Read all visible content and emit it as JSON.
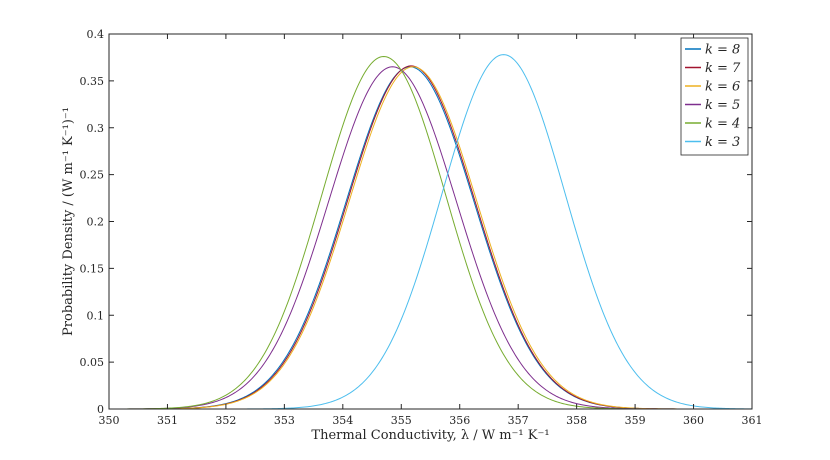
{
  "chart_data": {
    "type": "line",
    "xlabel": "Thermal Conductivity, λ / W m⁻¹ K⁻¹",
    "ylabel": "Probability Density / (W m⁻¹ K⁻¹)⁻¹",
    "xlim": [
      350,
      361
    ],
    "ylim": [
      0,
      0.4
    ],
    "xticks": [
      350,
      351,
      352,
      353,
      354,
      355,
      356,
      357,
      358,
      359,
      360,
      361
    ],
    "yticks": [
      0,
      0.05,
      0.1,
      0.15,
      0.2,
      0.25,
      0.3,
      0.35,
      0.4
    ],
    "grid": false,
    "legend_position": "top-right",
    "series": [
      {
        "name": "k = 8",
        "color": "#0072BD",
        "mean": 355.15,
        "peak": 0.365,
        "x": [
          351,
          352,
          353,
          354,
          354.5,
          355,
          355.15,
          355.5,
          356,
          357,
          358,
          359
        ],
        "y": [
          0.0022,
          0.0214,
          0.1077,
          0.2778,
          0.3401,
          0.3625,
          0.365,
          0.3517,
          0.2853,
          0.1115,
          0.0187,
          0.0014
        ]
      },
      {
        "name": "k = 7",
        "color": "#A2142F",
        "mean": 355.17,
        "peak": 0.366,
        "x": [
          351,
          352,
          353,
          354,
          354.5,
          355,
          355.17,
          355.5,
          356,
          357,
          358,
          359
        ],
        "y": [
          0.0021,
          0.0207,
          0.1054,
          0.2754,
          0.3393,
          0.3636,
          0.366,
          0.3541,
          0.2889,
          0.114,
          0.0194,
          0.0015
        ]
      },
      {
        "name": "k = 6",
        "color": "#EDB120",
        "mean": 355.2,
        "peak": 0.365,
        "x": [
          351,
          352,
          353,
          354,
          354.5,
          355,
          355.2,
          355.5,
          356,
          357,
          358,
          359
        ],
        "y": [
          0.002,
          0.0197,
          0.1018,
          0.2706,
          0.3364,
          0.3622,
          0.365,
          0.3556,
          0.2923,
          0.1172,
          0.0203,
          0.0016
        ]
      },
      {
        "name": "k = 5",
        "color": "#7E2F8E",
        "mean": 354.85,
        "peak": 0.365,
        "x": [
          351,
          352,
          353,
          354,
          354.5,
          354.85,
          355,
          355.5,
          356,
          357,
          358,
          359
        ],
        "y": [
          0.0039,
          0.0341,
          0.1528,
          0.3279,
          0.3591,
          0.365,
          0.3635,
          0.3216,
          0.2284,
          0.068,
          0.0086,
          0.0005
        ]
      },
      {
        "name": "k = 4",
        "color": "#77AC30",
        "mean": 354.7,
        "peak": 0.376,
        "x": [
          351,
          352,
          353,
          354,
          354.5,
          354.7,
          355,
          355.5,
          356,
          357,
          358,
          359
        ],
        "y": [
          0.0039,
          0.0363,
          0.1685,
          0.3478,
          0.3728,
          0.376,
          0.3695,
          0.3145,
          0.2115,
          0.0561,
          0.006,
          0.0003
        ]
      },
      {
        "name": "k = 3",
        "color": "#4DBEEE",
        "mean": 356.75,
        "peak": 0.378,
        "x": [
          352,
          353,
          354,
          355,
          355.5,
          356,
          356.75,
          357,
          357.5,
          358,
          359,
          360,
          361
        ],
        "y": [
          0.0002,
          0.0036,
          0.0394,
          0.1833,
          0.284,
          0.3459,
          0.378,
          0.3702,
          0.3188,
          0.2386,
          0.0855,
          0.0126,
          0.0008
        ]
      }
    ]
  }
}
